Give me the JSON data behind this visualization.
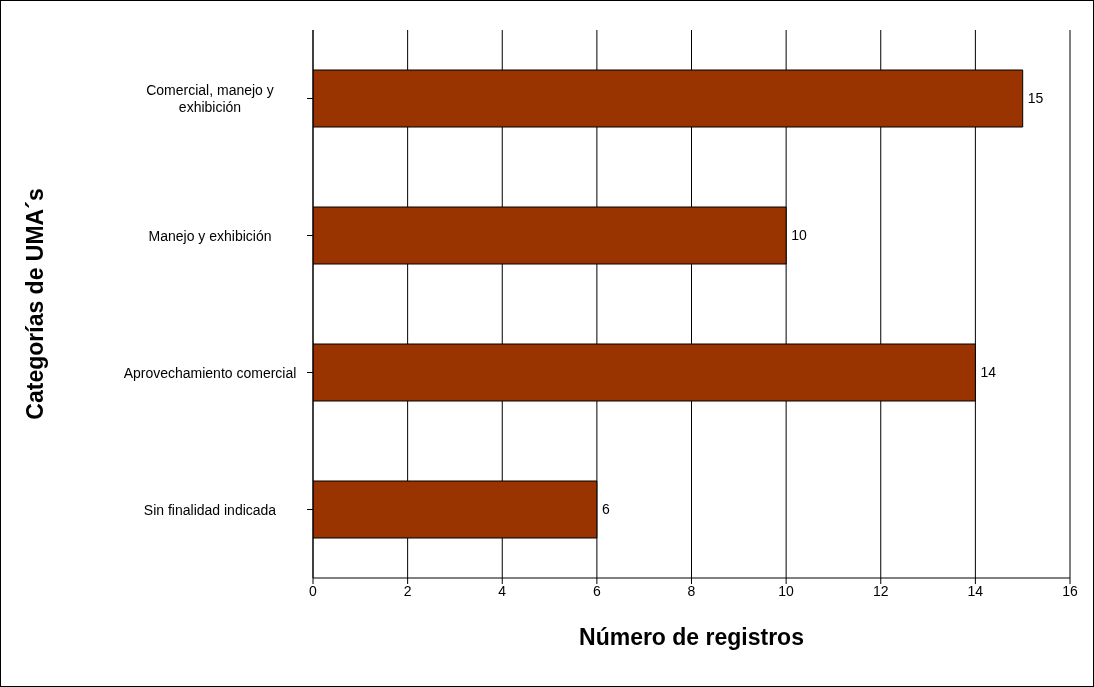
{
  "chart_data": {
    "type": "bar",
    "orientation": "horizontal",
    "categories": [
      "Comercial, manejo y exhibición",
      "Manejo y exhibición",
      "Aprovechamiento comercial",
      "Sin finalidad indicada"
    ],
    "values": [
      15,
      10,
      14,
      6
    ],
    "color": "#993300",
    "xlim": [
      0,
      16
    ],
    "xticks": [
      0,
      2,
      4,
      6,
      8,
      10,
      12,
      14,
      16
    ],
    "xlabel": "Número de registros",
    "ylabel": "Categorías de UMA´s",
    "grid": "x",
    "data_labels": true
  }
}
